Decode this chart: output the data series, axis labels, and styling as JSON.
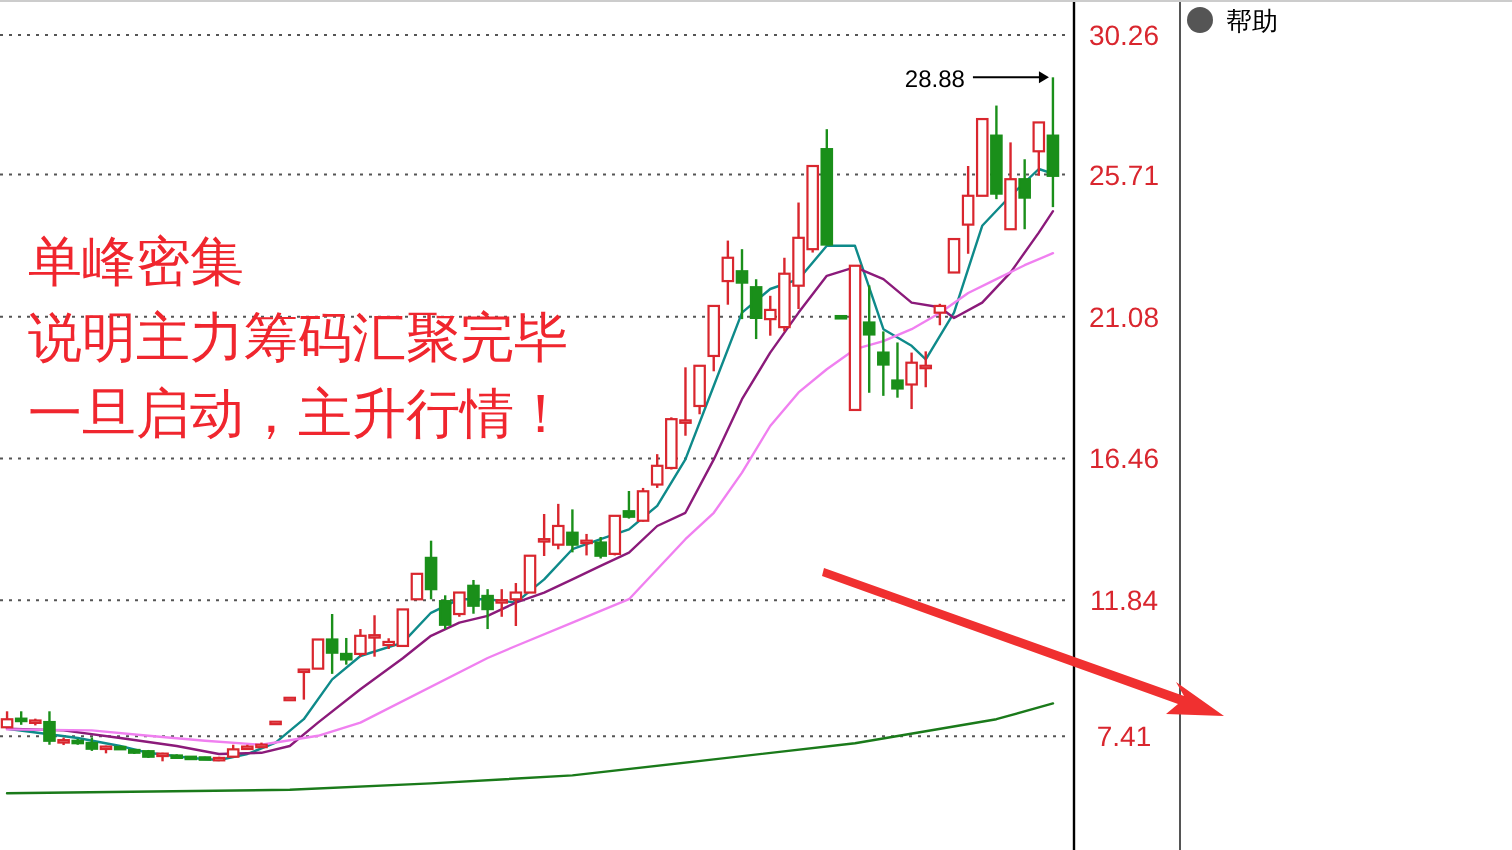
{
  "chart_data": {
    "type": "candlestick",
    "categories": [
      null,
      null,
      null,
      null,
      null,
      null,
      null,
      null,
      null,
      null,
      null,
      null,
      null,
      null,
      null,
      null,
      null,
      null,
      null,
      null,
      null,
      null,
      null,
      null,
      null,
      null,
      null,
      null,
      null,
      null,
      null,
      null,
      null,
      null,
      null,
      null,
      null,
      null,
      null,
      null,
      null,
      null,
      null,
      null,
      null,
      null,
      null,
      null,
      null,
      null,
      null,
      null,
      null,
      null,
      null,
      null,
      null,
      null,
      null,
      null,
      null,
      null,
      null,
      null,
      null,
      null,
      null,
      null,
      null,
      null,
      null,
      null,
      null,
      null,
      null
    ],
    "ohlc": [
      [
        7.7,
        8.22,
        7.7,
        7.96
      ],
      [
        7.98,
        8.22,
        7.78,
        7.9
      ],
      [
        7.88,
        7.98,
        7.76,
        7.92
      ],
      [
        7.87,
        8.22,
        7.13,
        7.26
      ],
      [
        7.24,
        7.36,
        7.12,
        7.28
      ],
      [
        7.26,
        7.32,
        7.13,
        7.18
      ],
      [
        7.19,
        7.37,
        6.93,
        7.0
      ],
      [
        7.02,
        7.1,
        6.85,
        7.07
      ],
      [
        7.06,
        7.1,
        6.97,
        7.04
      ],
      [
        6.96,
        6.99,
        6.83,
        6.87
      ],
      [
        6.92,
        6.96,
        6.7,
        6.74
      ],
      [
        6.8,
        6.87,
        6.59,
        6.84
      ],
      [
        6.78,
        6.82,
        6.7,
        6.74
      ],
      [
        6.74,
        6.76,
        6.7,
        6.71
      ],
      [
        6.72,
        6.74,
        6.64,
        6.66
      ],
      [
        6.68,
        6.74,
        6.64,
        6.7
      ],
      [
        6.74,
        7.13,
        6.72,
        6.98
      ],
      [
        7.02,
        7.13,
        6.98,
        7.07
      ],
      [
        7.1,
        7.2,
        7.05,
        7.13
      ],
      [
        7.86,
        7.9,
        7.84,
        7.88
      ],
      [
        8.63,
        8.68,
        8.61,
        8.66
      ],
      [
        9.55,
        9.58,
        8.6,
        9.58
      ],
      [
        9.61,
        10.56,
        9.61,
        10.56
      ],
      [
        10.56,
        11.39,
        9.44,
        10.13
      ],
      [
        10.09,
        10.61,
        9.74,
        9.91
      ],
      [
        10.09,
        10.9,
        10.0,
        10.68
      ],
      [
        10.65,
        11.35,
        10.0,
        10.7
      ],
      [
        10.38,
        10.6,
        10.25,
        10.48
      ],
      [
        10.35,
        11.54,
        10.35,
        11.54
      ],
      [
        11.87,
        12.7,
        11.87,
        12.7
      ],
      [
        13.22,
        13.78,
        11.87,
        12.2
      ],
      [
        11.81,
        12.0,
        10.9,
        11.04
      ],
      [
        11.39,
        12.09,
        11.3,
        12.09
      ],
      [
        12.31,
        12.5,
        11.4,
        11.66
      ],
      [
        11.98,
        12.2,
        10.9,
        11.55
      ],
      [
        11.79,
        12.2,
        11.3,
        11.84
      ],
      [
        11.87,
        12.4,
        11.0,
        12.09
      ],
      [
        12.09,
        13.29,
        12.09,
        13.29
      ],
      [
        13.78,
        14.65,
        13.28,
        13.83
      ],
      [
        13.65,
        14.98,
        13.5,
        14.26
      ],
      [
        14.04,
        14.8,
        13.4,
        13.65
      ],
      [
        13.75,
        14.0,
        13.3,
        13.78
      ],
      [
        13.72,
        13.9,
        13.2,
        13.29
      ],
      [
        13.35,
        14.6,
        13.3,
        14.59
      ],
      [
        14.74,
        15.4,
        14.5,
        14.56
      ],
      [
        14.43,
        15.5,
        14.4,
        15.39
      ],
      [
        15.61,
        16.6,
        15.5,
        16.22
      ],
      [
        16.15,
        17.8,
        16.1,
        17.74
      ],
      [
        17.66,
        19.43,
        17.2,
        17.7
      ],
      [
        18.17,
        19.48,
        17.9,
        19.48
      ],
      [
        19.8,
        21.43,
        19.3,
        21.43
      ],
      [
        22.24,
        23.56,
        21.47,
        23.0
      ],
      [
        22.56,
        23.28,
        21.0,
        22.19
      ],
      [
        22.04,
        22.3,
        20.35,
        21.04
      ],
      [
        21.0,
        21.76,
        20.46,
        21.3
      ],
      [
        20.74,
        23.0,
        20.6,
        22.48
      ],
      [
        22.09,
        24.8,
        21.33,
        23.65
      ],
      [
        23.28,
        25.99,
        23.17,
        25.99
      ],
      [
        26.54,
        27.19,
        23.43,
        23.43
      ],
      [
        21.1,
        21.1,
        21.05,
        21.05
      ],
      [
        18.04,
        22.74,
        18.04,
        22.74
      ],
      [
        20.89,
        22.1,
        18.6,
        20.5
      ],
      [
        19.91,
        20.6,
        18.5,
        19.52
      ],
      [
        19.0,
        20.24,
        18.44,
        18.74
      ],
      [
        18.87,
        19.91,
        18.07,
        19.58
      ],
      [
        19.45,
        19.95,
        18.78,
        19.48
      ],
      [
        21.21,
        21.5,
        20.8,
        21.43
      ],
      [
        22.52,
        23.61,
        22.52,
        23.61
      ],
      [
        24.08,
        25.99,
        23.13,
        25.02
      ],
      [
        25.02,
        27.52,
        25.02,
        27.52
      ],
      [
        26.98,
        27.96,
        24.91,
        25.09
      ],
      [
        23.93,
        26.76,
        23.93,
        25.56
      ],
      [
        25.56,
        26.21,
        23.93,
        24.96
      ],
      [
        26.47,
        27.41,
        25.67,
        27.41
      ],
      [
        26.98,
        28.88,
        24.65,
        25.67
      ]
    ],
    "colors": [
      "#d9262e",
      "#1a8f1a",
      "#d9262e",
      "#1a8f1a",
      "#d9262e",
      "#1a8f1a",
      "#1a8f1a",
      "#d9262e",
      "#1a8f1a",
      "#1a8f1a",
      "#1a8f1a",
      "#d9262e",
      "#1a8f1a",
      "#1a8f1a",
      "#1a8f1a",
      "#d9262e",
      "#d9262e",
      "#d9262e",
      "#d9262e",
      "#d9262e",
      "#d9262e",
      "#d9262e",
      "#d9262e",
      "#1a8f1a",
      "#1a8f1a",
      "#d9262e",
      "#d9262e",
      "#d9262e",
      "#d9262e",
      "#d9262e",
      "#1a8f1a",
      "#1a8f1a",
      "#d9262e",
      "#1a8f1a",
      "#1a8f1a",
      "#d9262e",
      "#d9262e",
      "#d9262e",
      "#d9262e",
      "#d9262e",
      "#1a8f1a",
      "#d9262e",
      "#1a8f1a",
      "#d9262e",
      "#1a8f1a",
      "#d9262e",
      "#d9262e",
      "#d9262e",
      "#d9262e",
      "#d9262e",
      "#d9262e",
      "#d9262e",
      "#1a8f1a",
      "#1a8f1a",
      "#d9262e",
      "#d9262e",
      "#d9262e",
      "#d9262e",
      "#1a8f1a",
      "#1a8f1a",
      "#d9262e",
      "#1a8f1a",
      "#1a8f1a",
      "#1a8f1a",
      "#d9262e",
      "#d9262e",
      "#d9262e",
      "#d9262e",
      "#d9262e",
      "#d9262e",
      "#1a8f1a",
      "#d9262e",
      "#1a8f1a",
      "#d9262e",
      "#1a8f1a"
    ],
    "series": [
      {
        "type": "line",
        "color": "#0e8a8a",
        "values": [
          7.65,
          null,
          null,
          null,
          null,
          7.35,
          null,
          null,
          7.09,
          null,
          6.87,
          null,
          null,
          6.7,
          null,
          6.63,
          null,
          6.83,
          null,
          7.2,
          null,
          7.96,
          null,
          9.26,
          null,
          10.02,
          null,
          null,
          10.46,
          null,
          11.43,
          null,
          11.87,
          null,
          11.87,
          null,
          11.76,
          null,
          12.52,
          null,
          13.5,
          null,
          13.83,
          null,
          14.15,
          null,
          14.92,
          null,
          16.43,
          null,
          18.83,
          null,
          21.21,
          null,
          21.98,
          null,
          22.3,
          null,
          23.39,
          null,
          23.39,
          null,
          20.67,
          null,
          20.13,
          19.69,
          null,
          21.21,
          null,
          24.04,
          null,
          25.02,
          null,
          25.89,
          25.74
        ]
      },
      {
        "type": "line",
        "color": "#8b1a7a",
        "values": [
          7.65,
          null,
          null,
          null,
          7.6,
          null,
          null,
          null,
          7.35,
          null,
          null,
          null,
          7.09,
          null,
          null,
          6.83,
          null,
          null,
          6.87,
          null,
          7.09,
          null,
          7.85,
          null,
          null,
          8.94,
          null,
          null,
          9.95,
          null,
          10.68,
          null,
          11.11,
          null,
          11.33,
          null,
          11.76,
          null,
          12.09,
          null,
          12.52,
          null,
          12.96,
          null,
          13.39,
          null,
          14.26,
          null,
          14.69,
          null,
          16.43,
          null,
          18.39,
          null,
          19.91,
          null,
          21.21,
          null,
          22.41,
          null,
          22.69,
          null,
          22.3,
          null,
          21.54,
          null,
          21.39,
          21.04,
          null,
          21.54,
          null,
          22.52,
          null,
          23.82,
          24.52
        ]
      },
      {
        "type": "line",
        "color": "#f080f0",
        "values": [
          7.63,
          null,
          null,
          null,
          null,
          null,
          7.6,
          null,
          null,
          null,
          7.42,
          null,
          null,
          null,
          7.26,
          null,
          null,
          null,
          7.13,
          null,
          null,
          null,
          7.42,
          null,
          null,
          7.85,
          null,
          null,
          null,
          null,
          null,
          null,
          null,
          null,
          9.96,
          null,
          10.35,
          null,
          null,
          null,
          11.11,
          null,
          null,
          null,
          11.87,
          null,
          null,
          null,
          13.83,
          null,
          14.69,
          null,
          16.0,
          null,
          17.52,
          null,
          18.61,
          null,
          19.37,
          null,
          20.02,
          null,
          20.28,
          null,
          20.67,
          null,
          21.2,
          null,
          21.85,
          null,
          22.3,
          null,
          22.76,
          null,
          23.15
        ]
      },
      {
        "type": "line",
        "color": "#1a7a1a",
        "values": [
          5.55,
          null,
          null,
          null,
          null,
          null,
          null,
          null,
          null,
          null,
          null,
          null,
          null,
          null,
          null,
          null,
          null,
          null,
          null,
          null,
          5.66,
          null,
          null,
          null,
          null,
          null,
          null,
          null,
          null,
          null,
          5.87,
          null,
          null,
          null,
          null,
          null,
          null,
          null,
          null,
          null,
          6.13,
          null,
          null,
          null,
          null,
          null,
          null,
          null,
          null,
          null,
          6.65,
          null,
          null,
          null,
          null,
          null,
          null,
          null,
          null,
          null,
          7.18,
          null,
          null,
          null,
          null,
          null,
          null,
          null,
          null,
          null,
          7.96,
          null,
          null,
          null,
          8.48
        ]
      }
    ],
    "ylim": [
      3.7,
      31.4
    ],
    "yticks": [
      30.26,
      25.71,
      21.08,
      16.46,
      11.84,
      7.41
    ],
    "grid": "y",
    "tick_labels": "y",
    "annotations": [
      "单峰密集",
      "说明主力筹码汇聚完毕",
      "一旦启动，主升行情！",
      "28.88",
      "帮助"
    ]
  }
}
